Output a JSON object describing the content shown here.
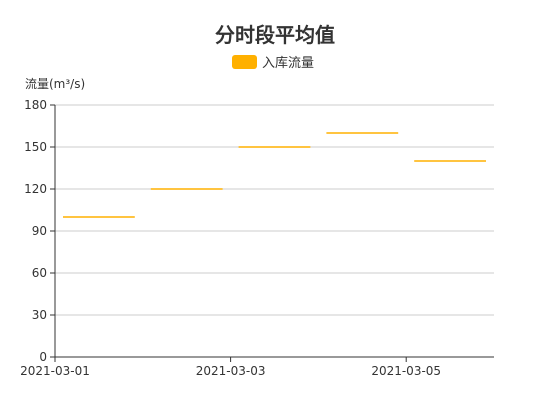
{
  "chart_data": {
    "type": "step-segment",
    "title": "分时段平均值",
    "ylabel": "流量(m³/s)",
    "xlabel": "",
    "ylim": [
      0,
      180
    ],
    "y_ticks": [
      0,
      30,
      60,
      90,
      120,
      150,
      180
    ],
    "x_tick_labels": [
      "2021-03-01",
      "2021-03-03",
      "2021-03-05"
    ],
    "x_domain": [
      "2021-03-01",
      "2021-03-06"
    ],
    "grid": "horizontal",
    "legend_position": "top-center",
    "series": [
      {
        "name": "入库流量",
        "color": "#ffb000",
        "segments": [
          {
            "start": "2021-03-01",
            "end": "2021-03-02",
            "value": 100
          },
          {
            "start": "2021-03-02",
            "end": "2021-03-03",
            "value": 120
          },
          {
            "start": "2021-03-03",
            "end": "2021-03-04",
            "value": 150
          },
          {
            "start": "2021-03-04",
            "end": "2021-03-05",
            "value": 160
          },
          {
            "start": "2021-03-05",
            "end": "2021-03-06",
            "value": 140
          }
        ]
      }
    ]
  }
}
